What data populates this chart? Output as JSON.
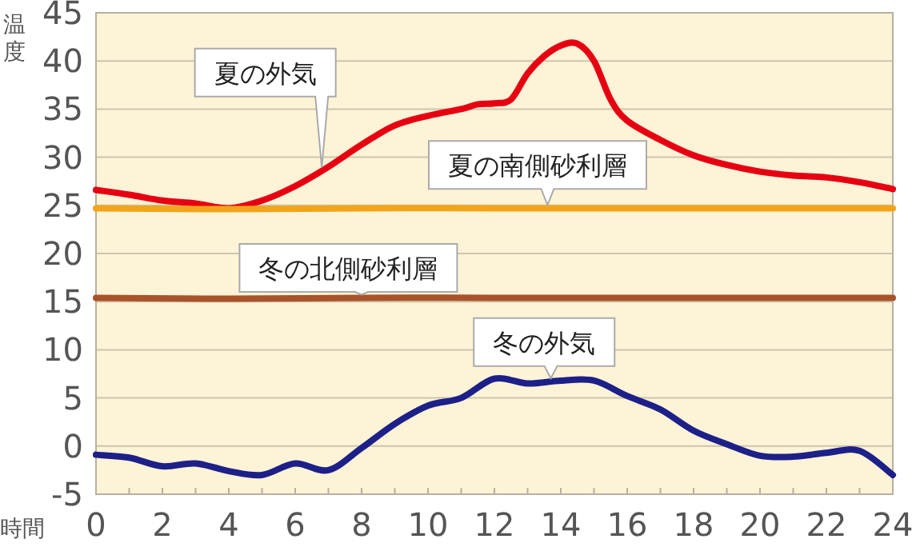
{
  "chart_data": {
    "type": "line",
    "ylabel": "温度",
    "xlabel": "時間",
    "xlim": [
      0,
      24
    ],
    "ylim": [
      -5,
      45
    ],
    "xticks": [
      0,
      2,
      4,
      6,
      8,
      10,
      12,
      14,
      16,
      18,
      20,
      22,
      24
    ],
    "yticks": [
      -5,
      0,
      5,
      10,
      15,
      20,
      25,
      30,
      35,
      40,
      45
    ],
    "grid": "y",
    "marker": "none",
    "line_style": "solid",
    "series": [
      {
        "name": "夏の外気",
        "color": "#e60012",
        "x": [
          0,
          1,
          2,
          3,
          4,
          5,
          6,
          7,
          8,
          9,
          10,
          11,
          11.5,
          12,
          12.5,
          13,
          13.5,
          14,
          14.5,
          15,
          15.5,
          16,
          17,
          18,
          19,
          20,
          21,
          22,
          23,
          24
        ],
        "values": [
          26.6,
          26.1,
          25.5,
          25.2,
          24.7,
          25.5,
          27.0,
          29.0,
          31.3,
          33.3,
          34.3,
          35.0,
          35.5,
          35.6,
          36.0,
          38.7,
          40.5,
          41.6,
          41.8,
          40.0,
          36.0,
          33.8,
          31.8,
          30.2,
          29.2,
          28.5,
          28.1,
          27.9,
          27.4,
          26.7
        ]
      },
      {
        "name": "夏の南側砂利層",
        "color": "#f2a51a",
        "x": [
          0,
          4,
          8,
          12,
          16,
          20,
          24
        ],
        "values": [
          24.7,
          24.6,
          24.7,
          24.7,
          24.7,
          24.7,
          24.7
        ]
      },
      {
        "name": "冬の北側砂利層",
        "color": "#a9532a",
        "x": [
          0,
          4,
          8,
          12,
          16,
          20,
          24
        ],
        "values": [
          15.4,
          15.3,
          15.4,
          15.4,
          15.4,
          15.4,
          15.4
        ]
      },
      {
        "name": "冬の外気",
        "color": "#1d2088",
        "x": [
          0,
          1,
          2,
          3,
          4,
          5,
          6,
          7,
          8,
          9,
          10,
          11,
          12,
          13,
          14,
          15,
          16,
          17,
          18,
          19,
          20,
          21,
          22,
          23,
          24
        ],
        "values": [
          -0.9,
          -1.2,
          -2.1,
          -1.8,
          -2.6,
          -3.0,
          -1.8,
          -2.5,
          -0.2,
          2.3,
          4.2,
          5.0,
          7.0,
          6.5,
          6.8,
          6.8,
          5.2,
          3.8,
          1.6,
          0.2,
          -1.0,
          -1.1,
          -0.7,
          -0.5,
          -3.0
        ]
      }
    ]
  }
}
